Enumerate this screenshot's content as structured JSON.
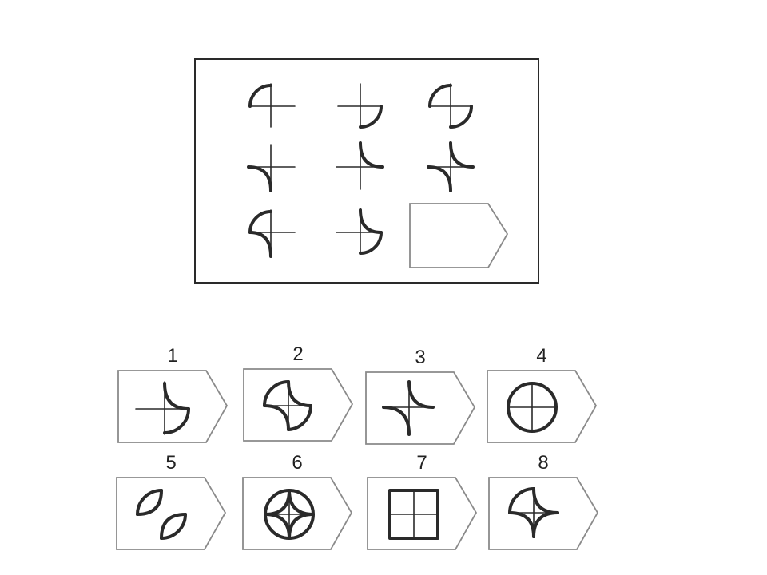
{
  "puzzle": {
    "matrix_cells": [
      {
        "id": "r1c1",
        "figure": "cross-arc-top-left"
      },
      {
        "id": "r1c2",
        "figure": "cross-arc-bottom-right"
      },
      {
        "id": "r1c3",
        "figure": "cross-arc-top-left-and-bottom-right"
      },
      {
        "id": "r2c1",
        "figure": "cross-concave-bottom-left"
      },
      {
        "id": "r2c2",
        "figure": "cross-concave-top-right"
      },
      {
        "id": "r2c3",
        "figure": "cross-concave-bottom-left-and-top-right"
      },
      {
        "id": "r3c1",
        "figure": "cross-arc-top-left-plus-concave-bottom-left"
      },
      {
        "id": "r3c2",
        "figure": "cross-arc-bottom-right-plus-concave-top-right"
      },
      {
        "id": "r3c3",
        "figure": "empty-answer-slot"
      }
    ],
    "options": [
      {
        "number": "1"
      },
      {
        "number": "2"
      },
      {
        "number": "3"
      },
      {
        "number": "4"
      },
      {
        "number": "5"
      },
      {
        "number": "6"
      },
      {
        "number": "7"
      },
      {
        "number": "8"
      }
    ]
  }
}
